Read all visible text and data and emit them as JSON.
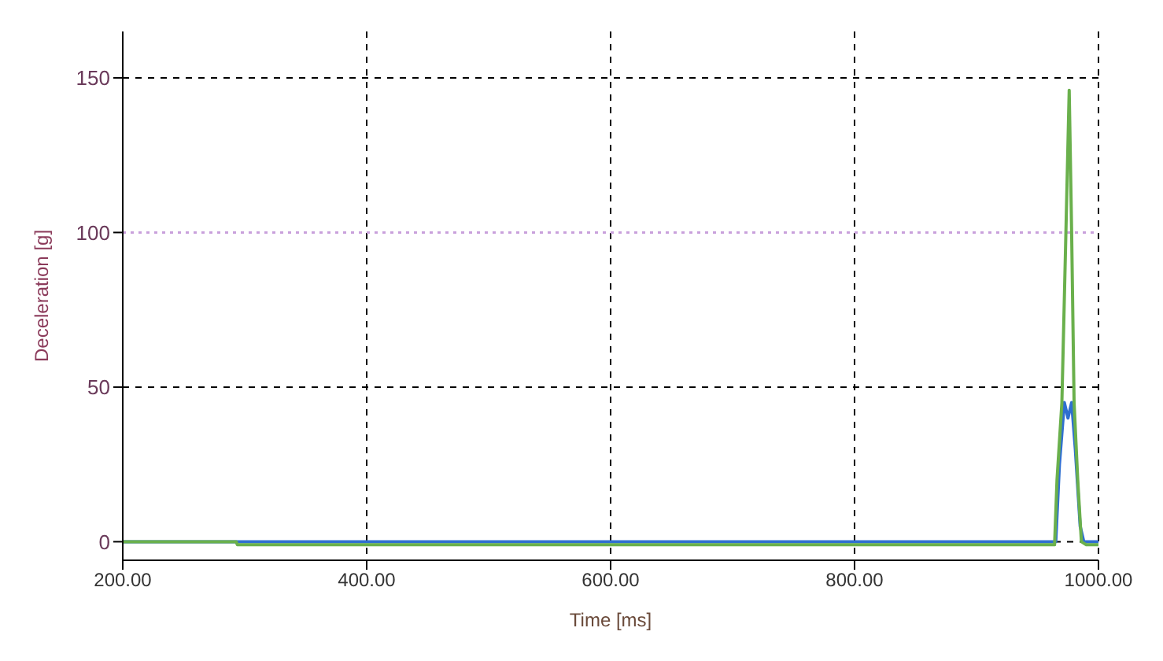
{
  "chart_data": {
    "type": "line",
    "xlabel": "Time [ms]",
    "ylabel": "Deceleration [g]",
    "xlim": [
      200,
      1000
    ],
    "ylim": [
      -6,
      165
    ],
    "xticks": [
      {
        "value": 200,
        "label": "200.00"
      },
      {
        "value": 400,
        "label": "400.00"
      },
      {
        "value": 600,
        "label": "600.00"
      },
      {
        "value": 800,
        "label": "800.00"
      },
      {
        "value": 1000,
        "label": "1000.00"
      }
    ],
    "yticks": [
      0,
      50,
      100,
      150
    ],
    "grid": true,
    "line_style": "solid",
    "marker": "none",
    "legend": false,
    "ref_lines": [
      {
        "axis": "y",
        "value": 100,
        "color": "#c9a0dc",
        "line_style": "dotted"
      }
    ],
    "series": [
      {
        "color": "#2f6fd0",
        "x": [
          200,
          293,
          965,
          968,
          972,
          975,
          978,
          981,
          985,
          988,
          1000
        ],
        "values": [
          0,
          0,
          0,
          25,
          45,
          40,
          45,
          30,
          5,
          0,
          0
        ]
      },
      {
        "color": "#6ab04c",
        "x": [
          200,
          293,
          294,
          964,
          966,
          970,
          973,
          976,
          978,
          980,
          983,
          986,
          990,
          1000
        ],
        "values": [
          0,
          0,
          -1,
          -1,
          20,
          45,
          95,
          146,
          100,
          45,
          20,
          0,
          -1,
          -1
        ]
      }
    ]
  }
}
